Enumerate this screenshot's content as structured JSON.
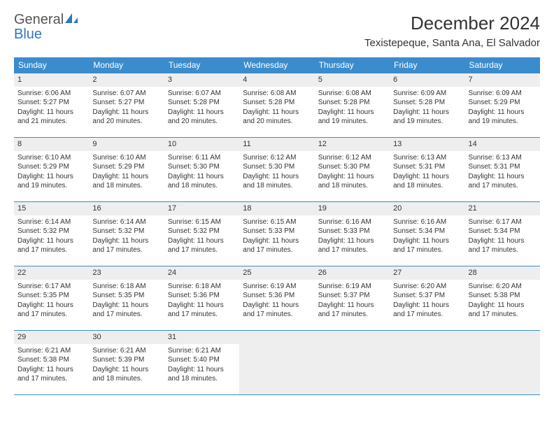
{
  "logo": {
    "general": "General",
    "blue": "Blue"
  },
  "title": "December 2024",
  "location": "Texistepeque, Santa Ana, El Salvador",
  "colors": {
    "header_bg": "#3b8ccc",
    "header_fg": "#ffffff",
    "border": "#3b8ccc",
    "daynum_bg": "#eeeeee",
    "text": "#333333",
    "logo_blue": "#2e78c0"
  },
  "days_of_week": [
    "Sunday",
    "Monday",
    "Tuesday",
    "Wednesday",
    "Thursday",
    "Friday",
    "Saturday"
  ],
  "weeks": [
    [
      {
        "n": "1",
        "sunrise": "Sunrise: 6:06 AM",
        "sunset": "Sunset: 5:27 PM",
        "d1": "Daylight: 11 hours",
        "d2": "and 21 minutes."
      },
      {
        "n": "2",
        "sunrise": "Sunrise: 6:07 AM",
        "sunset": "Sunset: 5:27 PM",
        "d1": "Daylight: 11 hours",
        "d2": "and 20 minutes."
      },
      {
        "n": "3",
        "sunrise": "Sunrise: 6:07 AM",
        "sunset": "Sunset: 5:28 PM",
        "d1": "Daylight: 11 hours",
        "d2": "and 20 minutes."
      },
      {
        "n": "4",
        "sunrise": "Sunrise: 6:08 AM",
        "sunset": "Sunset: 5:28 PM",
        "d1": "Daylight: 11 hours",
        "d2": "and 20 minutes."
      },
      {
        "n": "5",
        "sunrise": "Sunrise: 6:08 AM",
        "sunset": "Sunset: 5:28 PM",
        "d1": "Daylight: 11 hours",
        "d2": "and 19 minutes."
      },
      {
        "n": "6",
        "sunrise": "Sunrise: 6:09 AM",
        "sunset": "Sunset: 5:28 PM",
        "d1": "Daylight: 11 hours",
        "d2": "and 19 minutes."
      },
      {
        "n": "7",
        "sunrise": "Sunrise: 6:09 AM",
        "sunset": "Sunset: 5:29 PM",
        "d1": "Daylight: 11 hours",
        "d2": "and 19 minutes."
      }
    ],
    [
      {
        "n": "8",
        "sunrise": "Sunrise: 6:10 AM",
        "sunset": "Sunset: 5:29 PM",
        "d1": "Daylight: 11 hours",
        "d2": "and 19 minutes."
      },
      {
        "n": "9",
        "sunrise": "Sunrise: 6:10 AM",
        "sunset": "Sunset: 5:29 PM",
        "d1": "Daylight: 11 hours",
        "d2": "and 18 minutes."
      },
      {
        "n": "10",
        "sunrise": "Sunrise: 6:11 AM",
        "sunset": "Sunset: 5:30 PM",
        "d1": "Daylight: 11 hours",
        "d2": "and 18 minutes."
      },
      {
        "n": "11",
        "sunrise": "Sunrise: 6:12 AM",
        "sunset": "Sunset: 5:30 PM",
        "d1": "Daylight: 11 hours",
        "d2": "and 18 minutes."
      },
      {
        "n": "12",
        "sunrise": "Sunrise: 6:12 AM",
        "sunset": "Sunset: 5:30 PM",
        "d1": "Daylight: 11 hours",
        "d2": "and 18 minutes."
      },
      {
        "n": "13",
        "sunrise": "Sunrise: 6:13 AM",
        "sunset": "Sunset: 5:31 PM",
        "d1": "Daylight: 11 hours",
        "d2": "and 18 minutes."
      },
      {
        "n": "14",
        "sunrise": "Sunrise: 6:13 AM",
        "sunset": "Sunset: 5:31 PM",
        "d1": "Daylight: 11 hours",
        "d2": "and 17 minutes."
      }
    ],
    [
      {
        "n": "15",
        "sunrise": "Sunrise: 6:14 AM",
        "sunset": "Sunset: 5:32 PM",
        "d1": "Daylight: 11 hours",
        "d2": "and 17 minutes."
      },
      {
        "n": "16",
        "sunrise": "Sunrise: 6:14 AM",
        "sunset": "Sunset: 5:32 PM",
        "d1": "Daylight: 11 hours",
        "d2": "and 17 minutes."
      },
      {
        "n": "17",
        "sunrise": "Sunrise: 6:15 AM",
        "sunset": "Sunset: 5:32 PM",
        "d1": "Daylight: 11 hours",
        "d2": "and 17 minutes."
      },
      {
        "n": "18",
        "sunrise": "Sunrise: 6:15 AM",
        "sunset": "Sunset: 5:33 PM",
        "d1": "Daylight: 11 hours",
        "d2": "and 17 minutes."
      },
      {
        "n": "19",
        "sunrise": "Sunrise: 6:16 AM",
        "sunset": "Sunset: 5:33 PM",
        "d1": "Daylight: 11 hours",
        "d2": "and 17 minutes."
      },
      {
        "n": "20",
        "sunrise": "Sunrise: 6:16 AM",
        "sunset": "Sunset: 5:34 PM",
        "d1": "Daylight: 11 hours",
        "d2": "and 17 minutes."
      },
      {
        "n": "21",
        "sunrise": "Sunrise: 6:17 AM",
        "sunset": "Sunset: 5:34 PM",
        "d1": "Daylight: 11 hours",
        "d2": "and 17 minutes."
      }
    ],
    [
      {
        "n": "22",
        "sunrise": "Sunrise: 6:17 AM",
        "sunset": "Sunset: 5:35 PM",
        "d1": "Daylight: 11 hours",
        "d2": "and 17 minutes."
      },
      {
        "n": "23",
        "sunrise": "Sunrise: 6:18 AM",
        "sunset": "Sunset: 5:35 PM",
        "d1": "Daylight: 11 hours",
        "d2": "and 17 minutes."
      },
      {
        "n": "24",
        "sunrise": "Sunrise: 6:18 AM",
        "sunset": "Sunset: 5:36 PM",
        "d1": "Daylight: 11 hours",
        "d2": "and 17 minutes."
      },
      {
        "n": "25",
        "sunrise": "Sunrise: 6:19 AM",
        "sunset": "Sunset: 5:36 PM",
        "d1": "Daylight: 11 hours",
        "d2": "and 17 minutes."
      },
      {
        "n": "26",
        "sunrise": "Sunrise: 6:19 AM",
        "sunset": "Sunset: 5:37 PM",
        "d1": "Daylight: 11 hours",
        "d2": "and 17 minutes."
      },
      {
        "n": "27",
        "sunrise": "Sunrise: 6:20 AM",
        "sunset": "Sunset: 5:37 PM",
        "d1": "Daylight: 11 hours",
        "d2": "and 17 minutes."
      },
      {
        "n": "28",
        "sunrise": "Sunrise: 6:20 AM",
        "sunset": "Sunset: 5:38 PM",
        "d1": "Daylight: 11 hours",
        "d2": "and 17 minutes."
      }
    ],
    [
      {
        "n": "29",
        "sunrise": "Sunrise: 6:21 AM",
        "sunset": "Sunset: 5:38 PM",
        "d1": "Daylight: 11 hours",
        "d2": "and 17 minutes."
      },
      {
        "n": "30",
        "sunrise": "Sunrise: 6:21 AM",
        "sunset": "Sunset: 5:39 PM",
        "d1": "Daylight: 11 hours",
        "d2": "and 18 minutes."
      },
      {
        "n": "31",
        "sunrise": "Sunrise: 6:21 AM",
        "sunset": "Sunset: 5:40 PM",
        "d1": "Daylight: 11 hours",
        "d2": "and 18 minutes."
      },
      null,
      null,
      null,
      null
    ]
  ]
}
